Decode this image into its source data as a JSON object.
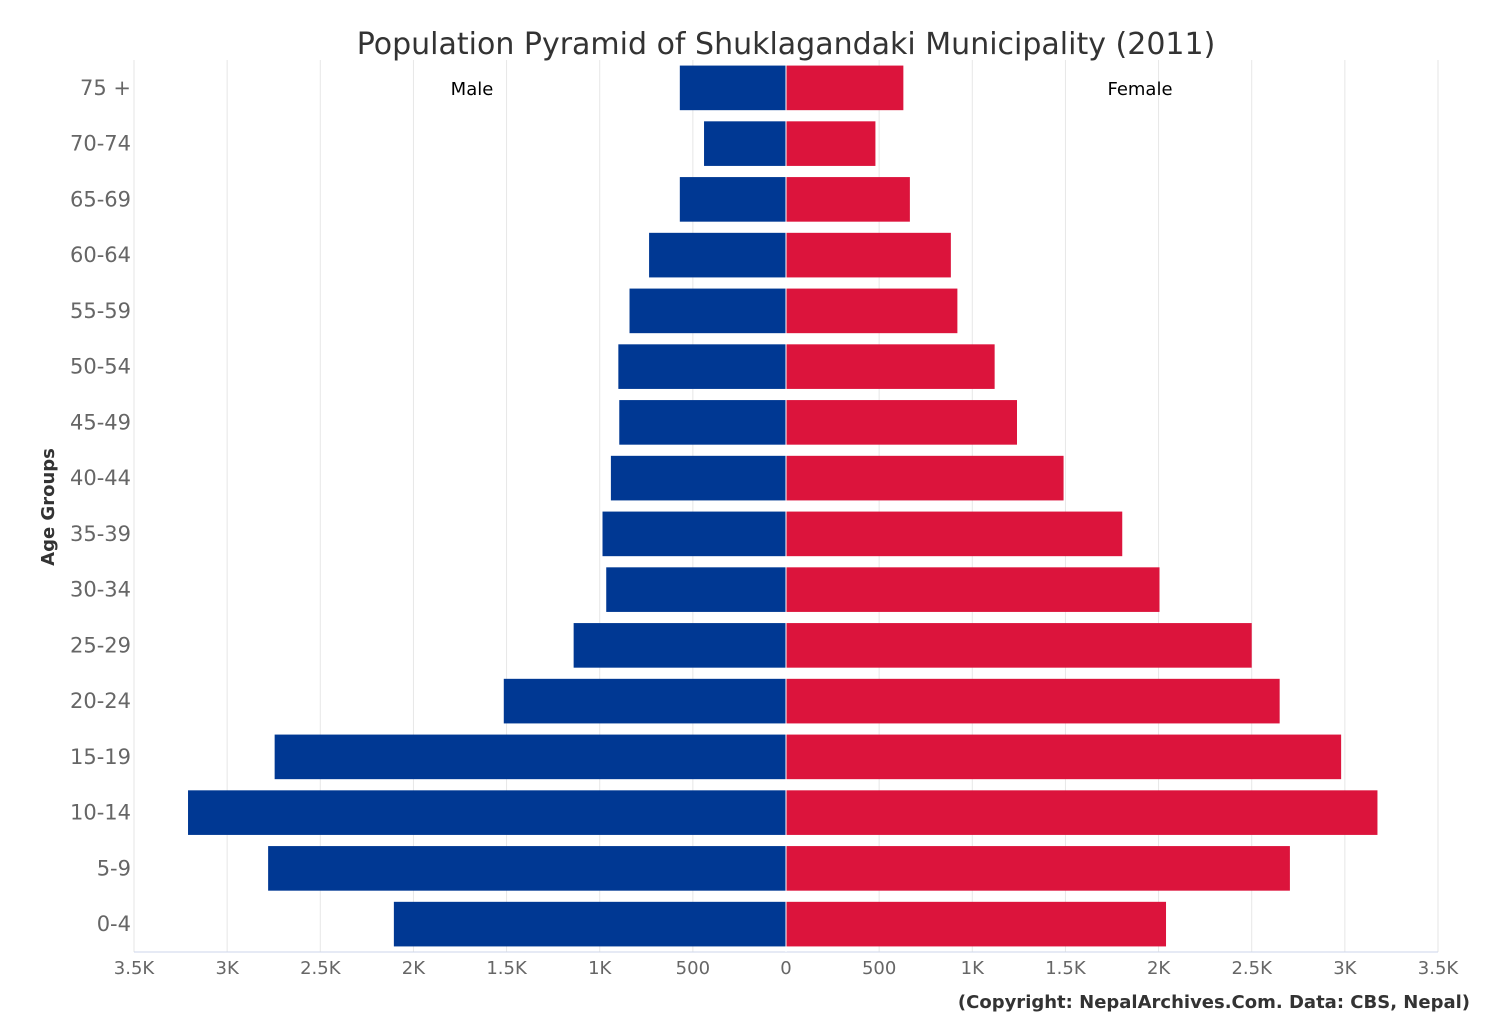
{
  "chart_data": {
    "type": "bar",
    "orientation": "horizontal-pyramid",
    "title": "Population Pyramid of Shuklagandaki Municipality (2011)",
    "ylabel": "Age Groups",
    "xlabel": "",
    "categories": [
      "75 +",
      "70-74",
      "65-69",
      "60-64",
      "55-59",
      "50-54",
      "45-49",
      "40-44",
      "35-39",
      "30-34",
      "25-29",
      "20-24",
      "15-19",
      "10-14",
      "5-9",
      "0-4"
    ],
    "series": [
      {
        "name": "Male",
        "color": "#003893",
        "values": [
          570,
          440,
          570,
          735,
          840,
          900,
          895,
          940,
          985,
          965,
          1140,
          1515,
          2745,
          3210,
          2780,
          2105
        ]
      },
      {
        "name": "Female",
        "color": "#DC143C",
        "values": [
          630,
          480,
          665,
          885,
          920,
          1120,
          1240,
          1490,
          1805,
          2005,
          2500,
          2650,
          2980,
          3175,
          2705,
          2040
        ]
      }
    ],
    "xlim": [
      -3500,
      3500
    ],
    "x_ticks": [
      -3500,
      -3000,
      -2500,
      -2000,
      -1500,
      -1000,
      -500,
      0,
      500,
      1000,
      1500,
      2000,
      2500,
      3000,
      3500
    ],
    "x_tick_labels": [
      "3.5K",
      "3K",
      "2.5K",
      "2K",
      "1.5K",
      "1K",
      "500",
      "0",
      "500",
      "1K",
      "1.5K",
      "2K",
      "2.5K",
      "3K",
      "3.5K"
    ],
    "grid": true,
    "credit": "(Copyright: NepalArchives.Com. Data: CBS, Nepal)"
  }
}
